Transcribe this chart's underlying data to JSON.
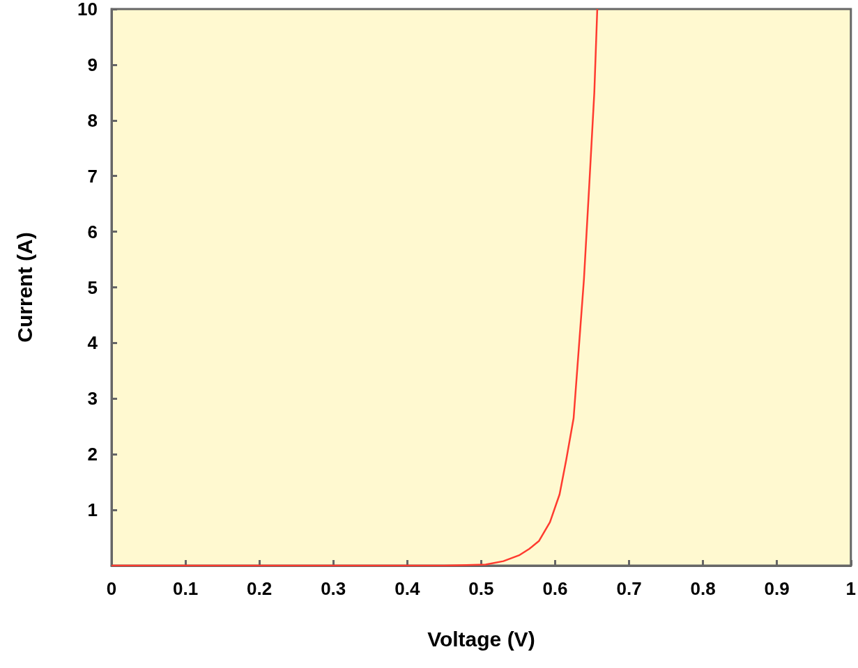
{
  "chart_data": {
    "type": "line",
    "xlabel": "Voltage (V)",
    "ylabel": "Current (A)",
    "x": [
      0,
      0.1,
      0.2,
      0.3,
      0.4,
      0.45,
      0.48,
      0.506,
      0.53,
      0.552,
      0.565,
      0.578,
      0.593,
      0.606,
      0.615,
      0.625,
      0.632,
      0.639,
      0.646,
      0.653,
      0.657
    ],
    "series": [
      {
        "color": "#ff3b2f",
        "values": [
          0,
          0,
          0,
          0,
          0,
          0,
          0.01,
          0.02,
          0.08,
          0.19,
          0.3,
          0.44,
          0.78,
          1.28,
          1.9,
          2.65,
          3.9,
          5.15,
          6.8,
          8.5,
          10
        ]
      }
    ],
    "xlim": [
      0,
      1
    ],
    "xticks": [
      0,
      0.1,
      0.2,
      0.3,
      0.4,
      0.5,
      0.6,
      0.7,
      0.8,
      0.9,
      1
    ],
    "ylim": [
      0,
      10
    ],
    "yticks": [
      1,
      2,
      3,
      4,
      5,
      6,
      7,
      8,
      9,
      10
    ],
    "grid": false,
    "marker": "none",
    "line_style": "solid"
  }
}
